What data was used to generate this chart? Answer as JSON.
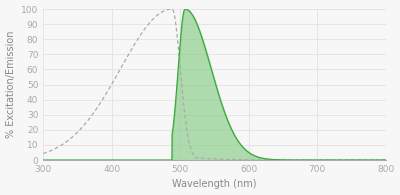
{
  "xlim": [
    300,
    800
  ],
  "ylim": [
    0,
    100
  ],
  "xlabel": "Wavelength (nm)",
  "ylabel": "% Excitation/Emission",
  "xticks": [
    300,
    400,
    500,
    600,
    700,
    800
  ],
  "yticks": [
    0,
    10,
    20,
    30,
    40,
    50,
    60,
    70,
    80,
    90,
    100
  ],
  "excitation_peak": 488,
  "emission_peak": 507,
  "background_color": "#f7f7f7",
  "grid_color": "#dedede",
  "line_color": "#3aaa3a",
  "fill_color": "#88cc88",
  "fill_alpha": 0.65,
  "dotted_color": "#aaaaaa",
  "axis_color": "#aaaaaa",
  "tick_color": "#aaaaaa",
  "label_color": "#888888",
  "axis_fontsize": 7.0,
  "tick_fontsize": 6.5
}
